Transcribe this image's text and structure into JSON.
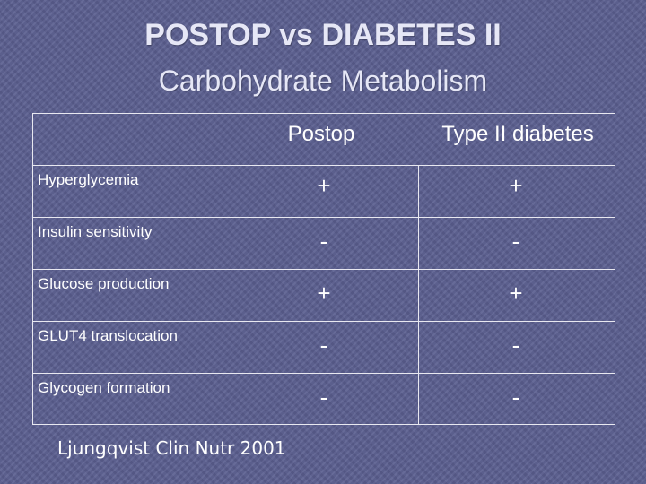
{
  "slide": {
    "title": "POSTOP vs DIABETES II",
    "subtitle": "Carbohydrate Metabolism",
    "citation": "Ljungqvist Clin Nutr 2001"
  },
  "table": {
    "columns": [
      "",
      "Postop",
      "Type II diabetes"
    ],
    "rows": [
      {
        "label": "Hyperglycemia",
        "postop": "+",
        "diabetes": "+"
      },
      {
        "label": "Insulin sensitivity",
        "postop": "-",
        "diabetes": "-"
      },
      {
        "label": "Glucose production",
        "postop": "+",
        "diabetes": "+"
      },
      {
        "label": "GLUT4 translocation",
        "postop": "-",
        "diabetes": "-"
      },
      {
        "label": "Glycogen formation",
        "postop": "-",
        "diabetes": "-"
      }
    ]
  },
  "colors": {
    "background": "#5a5e8f",
    "text": "#ffffff",
    "grid_lines": "#e8e8f0"
  }
}
